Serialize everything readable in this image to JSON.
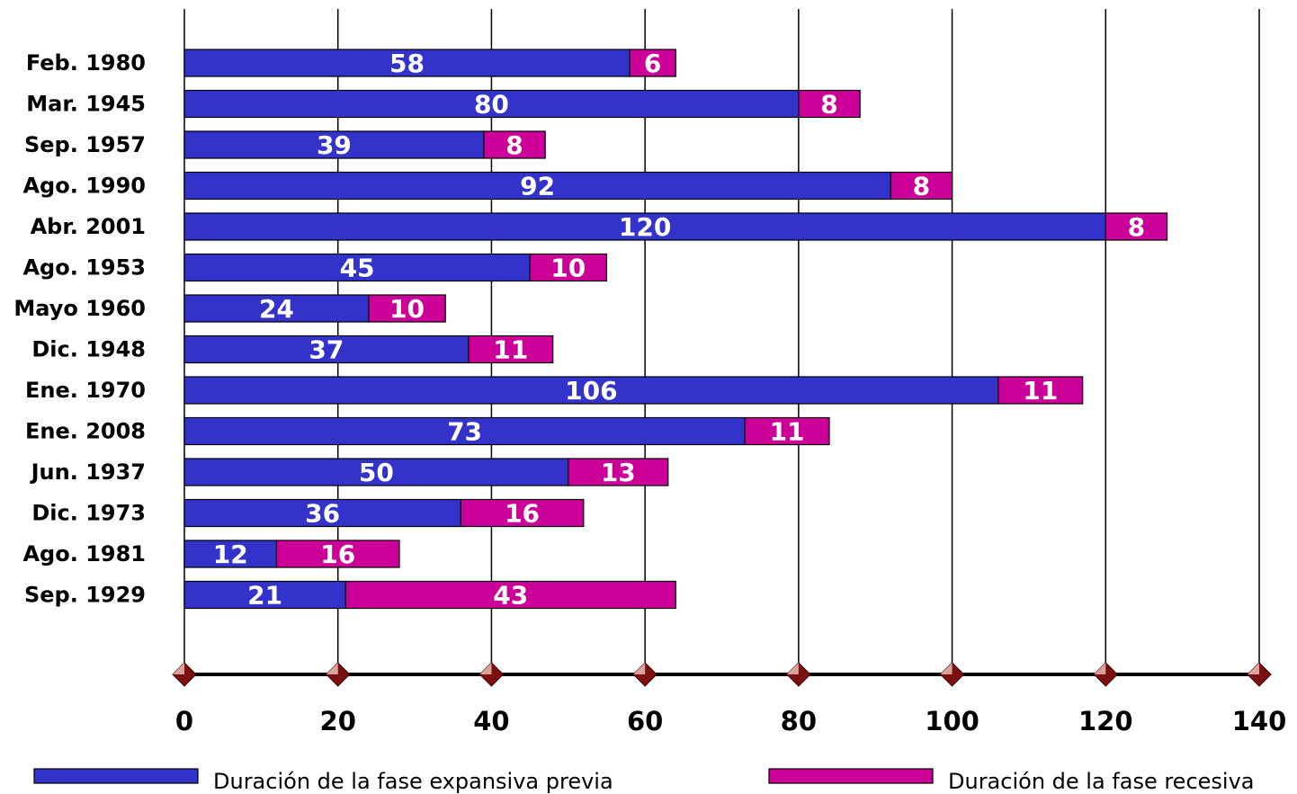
{
  "chart_data": {
    "type": "bar",
    "orientation": "horizontal",
    "stacked": true,
    "categories": [
      "Feb. 1980",
      "Mar. 1945",
      "Sep. 1957",
      "Ago. 1990",
      "Abr. 2001",
      "Ago. 1953",
      "Mayo 1960",
      "Dic. 1948",
      "Ene. 1970",
      "Ene. 2008",
      "Jun. 1937",
      "Dic. 1973",
      "Ago. 1981",
      "Sep. 1929"
    ],
    "series": [
      {
        "name": "Duración de la fase expansiva previa",
        "color": "#3333cc",
        "values": [
          58,
          80,
          39,
          92,
          120,
          45,
          24,
          37,
          106,
          73,
          50,
          36,
          12,
          21
        ]
      },
      {
        "name": "Duración de la fase recesiva",
        "color": "#cc0099",
        "values": [
          6,
          8,
          8,
          8,
          8,
          10,
          10,
          11,
          11,
          11,
          13,
          16,
          16,
          43
        ]
      }
    ],
    "xlim": [
      0,
      140
    ],
    "xticks": [
      0,
      20,
      40,
      60,
      80,
      100,
      120,
      140
    ],
    "grid": "vertical",
    "legend": "bottom"
  }
}
